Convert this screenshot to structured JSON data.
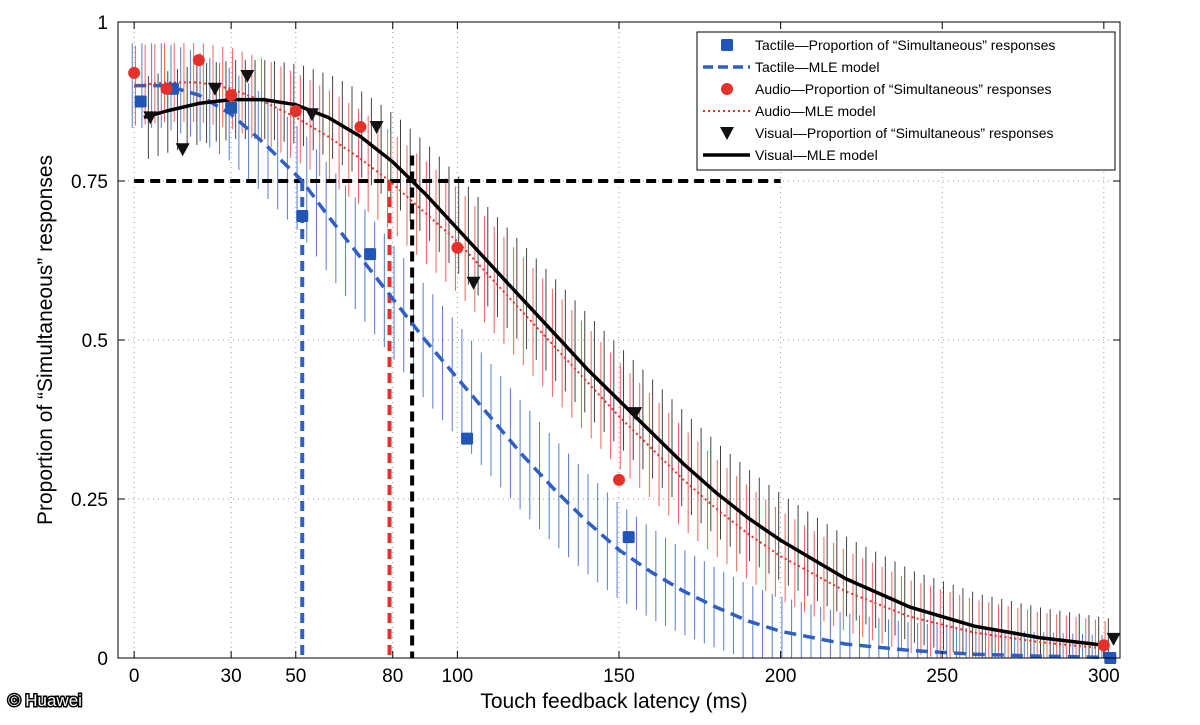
{
  "credit": "© Huawei",
  "chart_data": {
    "type": "scatter",
    "title": "",
    "xlabel": "Touch feedback latency (ms)",
    "ylabel": "Proportion of “Simultaneous” responses",
    "xlim": [
      -5,
      305
    ],
    "ylim": [
      0,
      1
    ],
    "xticks": [
      0,
      30,
      50,
      80,
      100,
      150,
      200,
      250,
      300
    ],
    "yticks": [
      0,
      0.25,
      0.5,
      0.75,
      1
    ],
    "ytick_labels": [
      "0",
      "0.25",
      "0.5",
      "0.75",
      "1"
    ],
    "grid": true,
    "legend_position": "top-right",
    "threshold": 0.75,
    "series": [
      {
        "name": "Tactile—Proportion of “Simultaneous” responses",
        "kind": "points",
        "marker": "square",
        "color": "#2255b8",
        "x": [
          2,
          12,
          30,
          52,
          73,
          103,
          153,
          302
        ],
        "y": [
          0.875,
          0.895,
          0.865,
          0.695,
          0.635,
          0.345,
          0.19,
          0.0
        ]
      },
      {
        "name": "Tactile—MLE model",
        "kind": "curve",
        "style": "dashed",
        "color": "#2f5fc4",
        "x": [
          0,
          10,
          20,
          30,
          40,
          50,
          52,
          60,
          70,
          80,
          90,
          100,
          110,
          120,
          130,
          140,
          150,
          160,
          170,
          180,
          190,
          200,
          220,
          240,
          260,
          280,
          300
        ],
        "y": [
          0.9,
          0.9,
          0.885,
          0.855,
          0.81,
          0.76,
          0.75,
          0.695,
          0.63,
          0.565,
          0.5,
          0.44,
          0.38,
          0.32,
          0.265,
          0.215,
          0.17,
          0.135,
          0.105,
          0.08,
          0.058,
          0.042,
          0.022,
          0.012,
          0.006,
          0.003,
          0.001
        ],
        "threshold_x": 52
      },
      {
        "name": "Audio—Proportion of “Simultaneous” responses",
        "kind": "points",
        "marker": "circle",
        "color": "#e8302a",
        "x": [
          0,
          10,
          20,
          30,
          50,
          70,
          100,
          150,
          300
        ],
        "y": [
          0.92,
          0.895,
          0.94,
          0.885,
          0.86,
          0.835,
          0.645,
          0.28,
          0.02
        ]
      },
      {
        "name": "Audio—MLE model",
        "kind": "curve",
        "style": "dotted",
        "color": "#e8302a",
        "x": [
          0,
          10,
          20,
          30,
          40,
          50,
          60,
          70,
          79,
          90,
          100,
          110,
          120,
          130,
          140,
          150,
          160,
          170,
          180,
          190,
          200,
          220,
          240,
          260,
          280,
          300
        ],
        "y": [
          0.9,
          0.905,
          0.905,
          0.895,
          0.875,
          0.85,
          0.82,
          0.785,
          0.75,
          0.7,
          0.655,
          0.6,
          0.545,
          0.49,
          0.435,
          0.38,
          0.33,
          0.28,
          0.235,
          0.195,
          0.16,
          0.105,
          0.065,
          0.04,
          0.025,
          0.015
        ],
        "threshold_x": 79
      },
      {
        "name": "Visual—Proportion of “Simultaneous” responses",
        "kind": "points",
        "marker": "triangle-down",
        "color": "#111111",
        "x": [
          5,
          15,
          25,
          35,
          55,
          75,
          105,
          155,
          303
        ],
        "y": [
          0.85,
          0.8,
          0.895,
          0.915,
          0.855,
          0.835,
          0.59,
          0.385,
          0.03
        ]
      },
      {
        "name": "Visual—MLE model",
        "kind": "curve",
        "style": "solid",
        "color": "#000000",
        "x": [
          3,
          10,
          20,
          30,
          40,
          50,
          60,
          70,
          80,
          86,
          90,
          100,
          110,
          120,
          130,
          140,
          150,
          160,
          170,
          180,
          190,
          200,
          220,
          240,
          260,
          280,
          300
        ],
        "y": [
          0.85,
          0.86,
          0.872,
          0.878,
          0.878,
          0.87,
          0.85,
          0.82,
          0.78,
          0.75,
          0.73,
          0.675,
          0.62,
          0.565,
          0.51,
          0.455,
          0.405,
          0.355,
          0.305,
          0.26,
          0.22,
          0.185,
          0.125,
          0.08,
          0.05,
          0.032,
          0.02
        ],
        "threshold_x": 86
      }
    ]
  }
}
